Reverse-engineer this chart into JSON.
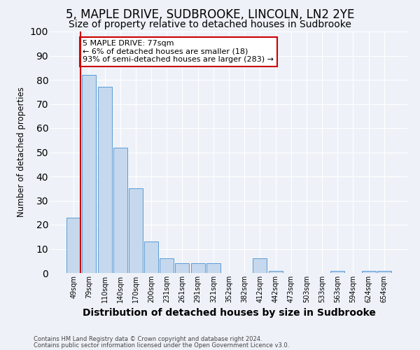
{
  "title": "5, MAPLE DRIVE, SUDBROOKE, LINCOLN, LN2 2YE",
  "subtitle": "Size of property relative to detached houses in Sudbrooke",
  "xlabel": "Distribution of detached houses by size in Sudbrooke",
  "ylabel": "Number of detached properties",
  "bar_labels": [
    "49sqm",
    "79sqm",
    "110sqm",
    "140sqm",
    "170sqm",
    "200sqm",
    "231sqm",
    "261sqm",
    "291sqm",
    "321sqm",
    "352sqm",
    "382sqm",
    "412sqm",
    "442sqm",
    "473sqm",
    "503sqm",
    "533sqm",
    "563sqm",
    "594sqm",
    "624sqm",
    "654sqm"
  ],
  "bar_values": [
    23,
    82,
    77,
    52,
    35,
    13,
    6,
    4,
    4,
    4,
    0,
    0,
    6,
    1,
    0,
    0,
    0,
    1,
    0,
    1,
    1
  ],
  "bar_color": "#c5d8ed",
  "bar_edge_color": "#5b9bd5",
  "annotation_line1": "5 MAPLE DRIVE: 77sqm",
  "annotation_line2": "← 6% of detached houses are smaller (18)",
  "annotation_line3": "93% of semi-detached houses are larger (283) →",
  "annotation_box_color": "#ffffff",
  "annotation_box_edge_color": "#cc0000",
  "ylim": [
    0,
    100
  ],
  "yticks": [
    0,
    10,
    20,
    30,
    40,
    50,
    60,
    70,
    80,
    90,
    100
  ],
  "background_color": "#eef2f8",
  "grid_color": "#ffffff",
  "footer_line1": "Contains HM Land Registry data © Crown copyright and database right 2024.",
  "footer_line2": "Contains public sector information licensed under the Open Government Licence v3.0.",
  "title_fontsize": 12,
  "subtitle_fontsize": 10,
  "ylabel_fontsize": 8.5,
  "xlabel_fontsize": 10,
  "tick_fontsize": 7,
  "annotation_fontsize": 8,
  "footer_fontsize": 6
}
